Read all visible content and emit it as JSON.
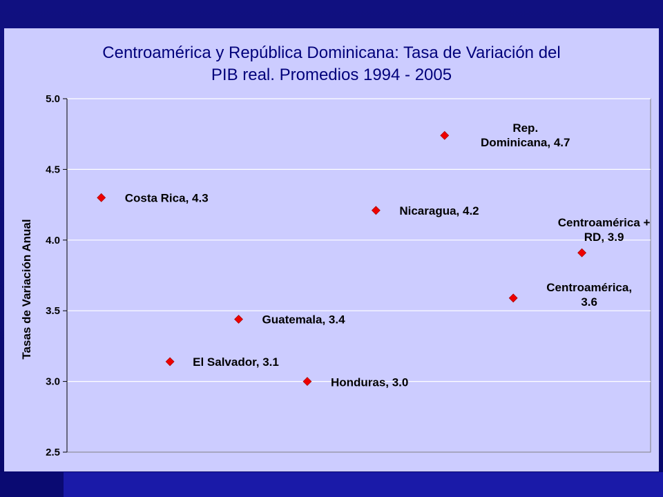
{
  "slide": {
    "background_color": "#0b0b6e",
    "panel_color": "#ccccff",
    "title_color": "#00007a",
    "marker_color": "#ee0000"
  },
  "chart_data": {
    "type": "scatter",
    "title_lines": [
      "Centroamérica y República Dominicana: Tasa de Variación del",
      "PIB real. Promedios 1994 - 2005"
    ],
    "xlabel": "",
    "ylabel": "Tasas de Variación Anual",
    "ylim": [
      2.5,
      5.0
    ],
    "yticks": [
      "2.5",
      "3.0",
      "3.5",
      "4.0",
      "4.5",
      "5.0"
    ],
    "grid": true,
    "points": [
      {
        "x": 1,
        "y": 4.3,
        "label_lines": [
          "Costa Rica, 4.3"
        ]
      },
      {
        "x": 2,
        "y": 3.14,
        "label_lines": [
          "El Salvador, 3.1"
        ]
      },
      {
        "x": 3,
        "y": 3.44,
        "label_lines": [
          "Guatemala, 3.4"
        ]
      },
      {
        "x": 4,
        "y": 3.0,
        "label_lines": [
          "Honduras, 3.0"
        ]
      },
      {
        "x": 5,
        "y": 4.21,
        "label_lines": [
          "Nicaragua, 4.2"
        ]
      },
      {
        "x": 6,
        "y": 4.74,
        "label_lines": [
          "Rep.",
          "Dominicana, 4.7"
        ]
      },
      {
        "x": 7,
        "y": 3.59,
        "label_lines": [
          "Centroamérica,",
          "3.6"
        ]
      },
      {
        "x": 8,
        "y": 3.91,
        "label_lines": [
          "Centroamérica +",
          "RD, 3.9"
        ]
      }
    ]
  }
}
